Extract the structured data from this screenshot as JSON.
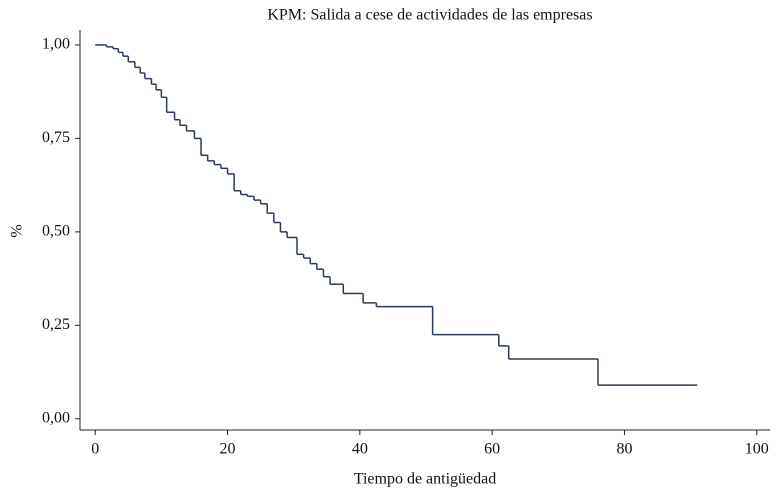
{
  "chart_data": {
    "type": "step",
    "title": "KPM: Salida a cese de actividades de las empresas",
    "x_label": "Tiempo de antigüedad",
    "y_label": "%",
    "x": [
      0,
      1.7,
      2.7,
      3.5,
      4.2,
      5.0,
      6.0,
      6.8,
      7.5,
      8.5,
      9.2,
      10,
      10.8,
      12,
      12.8,
      13.8,
      15,
      16,
      17,
      18,
      19,
      20,
      21,
      22,
      23,
      24,
      25,
      26,
      27,
      28,
      29,
      30.5,
      31.5,
      32.5,
      33.5,
      34.5,
      35.5,
      37.5,
      40.5,
      42.5,
      51,
      61,
      62.5,
      76,
      91
    ],
    "values": [
      1.0,
      0.995,
      0.99,
      0.98,
      0.97,
      0.955,
      0.94,
      0.925,
      0.91,
      0.895,
      0.88,
      0.86,
      0.82,
      0.8,
      0.785,
      0.77,
      0.75,
      0.705,
      0.69,
      0.68,
      0.67,
      0.655,
      0.61,
      0.6,
      0.595,
      0.585,
      0.575,
      0.55,
      0.525,
      0.5,
      0.485,
      0.44,
      0.43,
      0.415,
      0.4,
      0.38,
      0.36,
      0.335,
      0.31,
      0.3,
      0.225,
      0.195,
      0.16,
      0.09,
      0.09
    ],
    "color": "#2b3a55",
    "xlim": [
      -2.3,
      102
    ],
    "ylim": [
      -0.03,
      1.04
    ],
    "xticks": [
      0,
      20,
      40,
      60,
      80,
      100
    ],
    "yticks": [
      {
        "value": 0,
        "label": "0,00"
      },
      {
        "value": 0.25,
        "label": "0,25"
      },
      {
        "value": 0.5,
        "label": "0,50"
      },
      {
        "value": 0.75,
        "label": "0,75"
      },
      {
        "value": 1,
        "label": "1,00"
      }
    ]
  }
}
